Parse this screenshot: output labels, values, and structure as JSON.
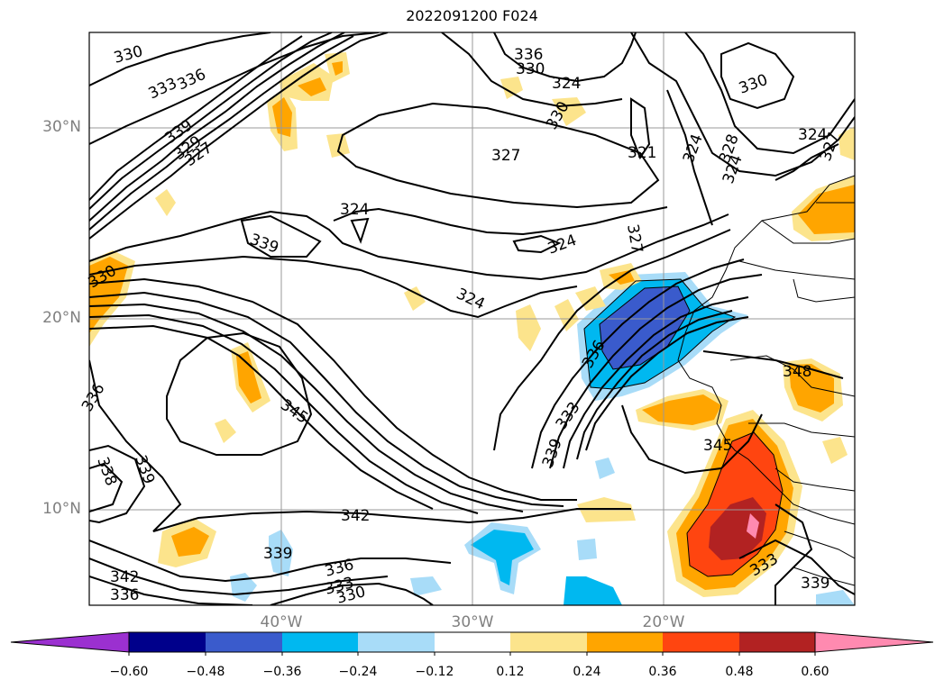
{
  "map": {
    "title": "2022091200 F024",
    "lat_labels": [
      "30°N",
      "20°N",
      "10°N"
    ],
    "lon_labels": [
      "40°W",
      "30°W",
      "20°W"
    ],
    "contour_labels": [
      "330",
      "333",
      "336",
      "339",
      "329",
      "327",
      "327",
      "324",
      "339",
      "336",
      "330",
      "324",
      "330",
      "321",
      "324",
      "328",
      "324",
      "330",
      "324",
      "327",
      "324",
      "327",
      "324",
      "330",
      "336",
      "333",
      "348",
      "345",
      "336",
      "338",
      "339",
      "339",
      "342",
      "345",
      "339",
      "336",
      "333",
      "330",
      "342",
      "336",
      "333",
      "339",
      "338",
      "339",
      "342",
      "339"
    ],
    "shading_colors": {
      "neg_060": "#9b30d0",
      "neg_048": "#00008b",
      "neg_036": "#3a5bcc",
      "neg_024": "#00b8f0",
      "neg_012": "#a8dcf8",
      "neutral": "#ffffff",
      "pos_012": "#fce48c",
      "pos_024": "#ffa500",
      "pos_036": "#ff4510",
      "pos_048": "#b22222",
      "pos_060": "#ff8ab0"
    }
  },
  "colorbar": {
    "ticks": [
      "−0.60",
      "−0.48",
      "−0.36",
      "−0.24",
      "−0.12",
      "0.12",
      "0.24",
      "0.36",
      "0.48",
      "0.60"
    ]
  }
}
